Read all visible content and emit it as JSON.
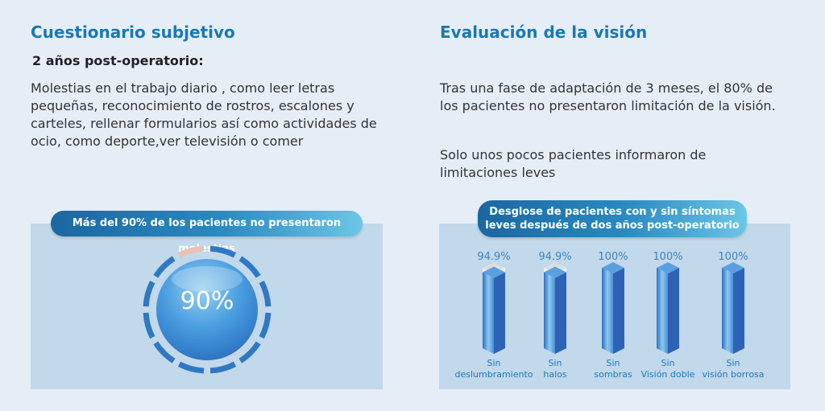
{
  "left": {
    "title": "Cuestionario subjetivo",
    "subtitle": "2 años post-operatorio:",
    "body": "Molestias en el trabajo diario , como leer letras pequeñas, reconocimiento de rostros, escalones y carteles, rellenar formularios así como actividades de ocio, como deporte,ver televisión o comer",
    "pill": "Más del 90% de los pacientes no presentaron molestias",
    "gauge_label": "90%",
    "gauge_value": 90
  },
  "right": {
    "title": "Evaluación de la visión",
    "body1": "Tras una fase de adaptación de 3 meses, el 80% de los pacientes no presentaron limitación de la visión.",
    "body2": "Solo unos pocos pacientes informaron de limitaciones leves",
    "pill_line1": "Desglose de pacientes con y sin síntomas",
    "pill_line2": "leves después de dos años post-operatorio"
  },
  "chart_data": {
    "type": "bar",
    "categories": [
      [
        "Sin",
        "deslumbramiento"
      ],
      [
        "Sin",
        "halos"
      ],
      [
        "Sin",
        "sombras"
      ],
      [
        "Sin",
        "Visión doble"
      ],
      [
        "Sin",
        "visión borrosa"
      ]
    ],
    "values": [
      94.9,
      94.9,
      100,
      100,
      100
    ],
    "value_labels": [
      "94.9%",
      "94.9%",
      "100%",
      "100%",
      "100%"
    ],
    "ylim": [
      0,
      100
    ]
  }
}
